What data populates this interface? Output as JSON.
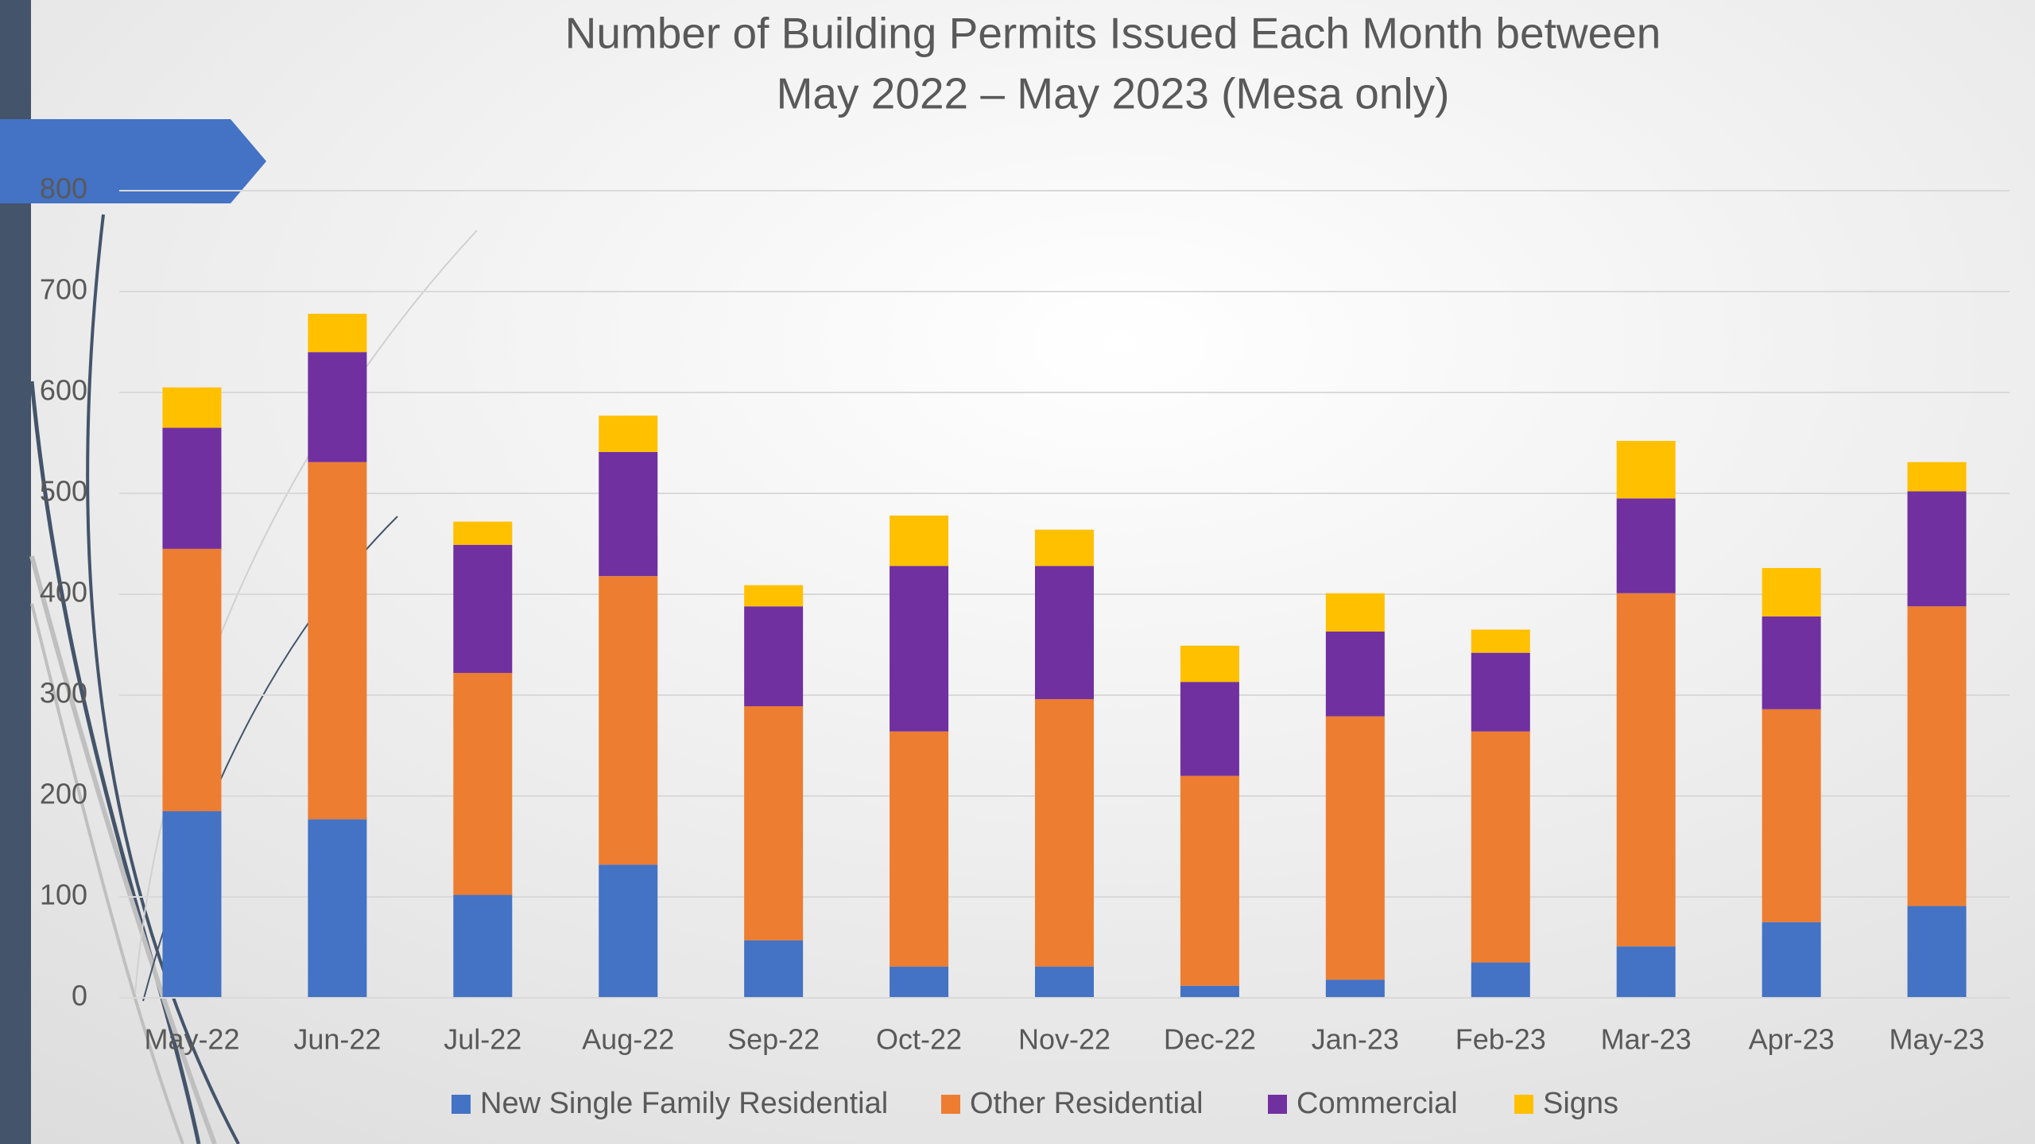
{
  "chart_data": {
    "type": "stacked-bar",
    "title": [
      "Number of Building Permits Issued Each Month between",
      "May 2022 – May 2023 (Mesa only)"
    ],
    "categories": [
      "May-22",
      "Jun-22",
      "Jul-22",
      "Aug-22",
      "Sep-22",
      "Oct-22",
      "Nov-22",
      "Dec-22",
      "Jan-23",
      "Feb-23",
      "Mar-23",
      "Apr-23",
      "May-23"
    ],
    "series": [
      {
        "name": "New Single Family Residential",
        "color": "#4472c4",
        "values": [
          185,
          177,
          102,
          132,
          57,
          31,
          31,
          12,
          18,
          35,
          51,
          75,
          91
        ]
      },
      {
        "name": "Other Residential",
        "color": "#ed7d31",
        "values": [
          260,
          354,
          220,
          286,
          232,
          233,
          265,
          208,
          261,
          229,
          350,
          211,
          297
        ]
      },
      {
        "name": "Commercial",
        "color": "#7030a0",
        "values": [
          120,
          109,
          127,
          123,
          99,
          164,
          132,
          93,
          84,
          78,
          94,
          92,
          114
        ]
      },
      {
        "name": "Signs",
        "color": "#ffc000",
        "values": [
          40,
          38,
          23,
          36,
          21,
          50,
          36,
          36,
          38,
          23,
          57,
          48,
          29
        ]
      }
    ],
    "ylim": [
      0,
      800
    ],
    "yticks": [
      0,
      100,
      200,
      300,
      400,
      500,
      600,
      700,
      800
    ],
    "grid": true,
    "legend": "bottom"
  }
}
